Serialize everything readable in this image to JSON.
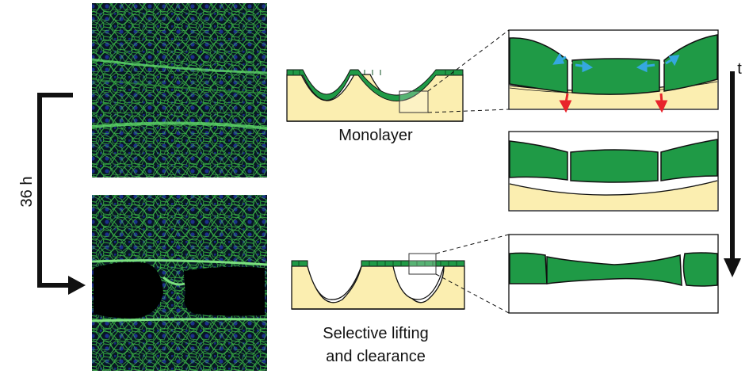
{
  "labels": {
    "time_interval": "36 h",
    "time_axis": "t",
    "top_schematic_caption": "Monolayer",
    "bottom_schematic_caption_line1": "Selective lifting",
    "bottom_schematic_caption_line2": "and clearance"
  },
  "colors": {
    "cell_green": "#1f9a46",
    "cell_dark": "#0e5a26",
    "substrate_yellow": "#fbeeb0",
    "outline": "#111111",
    "force_blue": "#35a8e0",
    "force_red": "#e8242b",
    "micrograph_bg": "#04101a"
  },
  "micrographs": [
    {
      "name": "monolayer-micrograph",
      "state": "confluent monolayer over grooves"
    },
    {
      "name": "cleared-micrograph",
      "state": "cells lifted and cleared over grooves"
    }
  ]
}
